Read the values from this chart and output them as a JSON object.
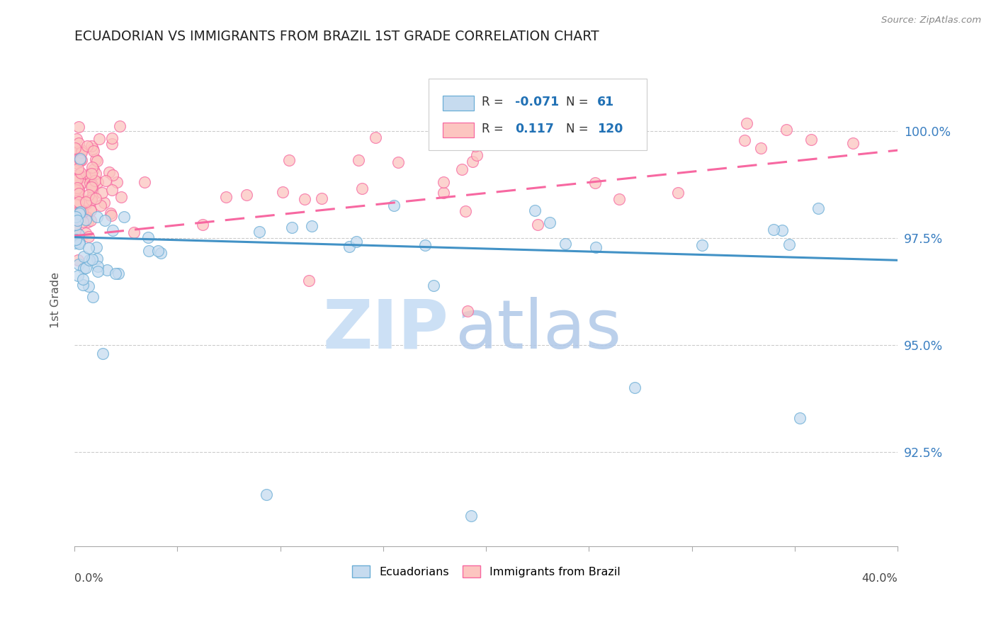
{
  "title": "ECUADORIAN VS IMMIGRANTS FROM BRAZIL 1ST GRADE CORRELATION CHART",
  "source_text": "Source: ZipAtlas.com",
  "ylabel": "1st Grade",
  "xmin": 0.0,
  "xmax": 40.0,
  "ymin": 90.3,
  "ymax": 101.8,
  "y_ticks": [
    92.5,
    95.0,
    97.5,
    100.0
  ],
  "y_tick_labels": [
    "92.5%",
    "95.0%",
    "97.5%",
    "100.0%"
  ],
  "ecu_face": "#c6dbef",
  "ecu_edge": "#6baed6",
  "ecu_trend": "#4292c6",
  "bra_face": "#fcc5c0",
  "bra_edge": "#f768a1",
  "bra_trend": "#f768a1",
  "legend_R_color": "#2171b5",
  "R_ecu": "-0.071",
  "N_ecu": "61",
  "R_bra": "0.117",
  "N_bra": "120",
  "ecu_trend_y0": 97.52,
  "ecu_trend_y1": 96.98,
  "bra_trend_y0": 97.55,
  "bra_trend_y1": 99.55,
  "watermark_zip_color": "#cce0f5",
  "watermark_atlas_color": "#b0c8e8"
}
